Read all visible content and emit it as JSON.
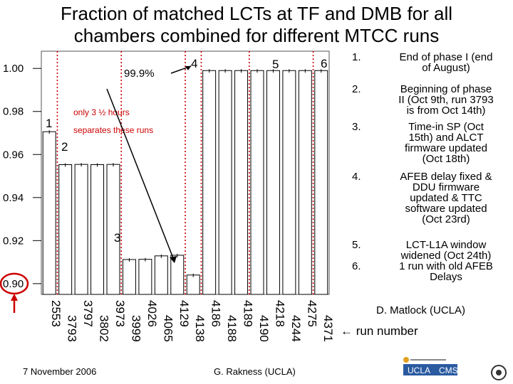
{
  "title_lines": [
    "Fraction of matched LCTs at TF and DMB for all",
    "chambers combined for different MTCC runs"
  ],
  "chart_data": {
    "type": "bar",
    "ylim": [
      0.895,
      1.008
    ],
    "yticks": [
      "1.00",
      "0.98",
      "0.96",
      "0.94",
      "0.92",
      "0.90"
    ],
    "ytick_values": [
      1.0,
      0.98,
      0.96,
      0.94,
      0.92,
      0.9
    ],
    "categories": [
      "2553",
      "3793",
      "3797",
      "3802",
      "3973",
      "3999",
      "4026",
      "4065",
      "4129",
      "4138",
      "4186",
      "4188",
      "4189",
      "4190",
      "4218",
      "4244",
      "4275",
      "4371"
    ],
    "values": [
      0.9706,
      0.9553,
      0.9554,
      0.9553,
      0.9554,
      0.9112,
      0.9113,
      0.9129,
      0.9132,
      0.904,
      0.999,
      0.999,
      0.999,
      0.999,
      0.999,
      0.999,
      0.999,
      0.999
    ],
    "phase_markers": [
      "1",
      "2",
      "3",
      "4",
      "5",
      "6"
    ],
    "annotations": {
      "percent": "99.9%",
      "hours_line1": "only 3 ½ hours",
      "hours_line2": "separates these runs"
    },
    "colors": {
      "divider": "#cc0000",
      "circle": "#cc0000",
      "bar": "#000000"
    }
  },
  "notes": [
    {
      "num": "1.",
      "lines": [
        "End of phase I (end",
        "of August)"
      ]
    },
    {
      "num": "2.",
      "lines": [
        "Beginning of phase",
        "II (Oct 9th, run 3793",
        "is from Oct 14th)"
      ]
    },
    {
      "num": "3.",
      "lines": [
        "Time-in SP (Oct",
        "15th) and ALCT",
        "firmware updated",
        "(Oct 18th)"
      ]
    },
    {
      "num": "4.",
      "lines": [
        "AFEB delay fixed &",
        "DDU firmware",
        "updated & TTC",
        "software updated",
        "(Oct 23rd)"
      ]
    },
    {
      "num": "5.",
      "lines": [
        "LCT-L1A window",
        "widened (Oct 24th)"
      ]
    },
    {
      "num": "6.",
      "lines": [
        "1 run with old AFEB",
        "Delays"
      ]
    }
  ],
  "credit_right": "D. Matlock (UCLA)",
  "run_number_label": "run number",
  "footer_date": "7 November 2006",
  "footer_author": "G. Rakness (UCLA)"
}
